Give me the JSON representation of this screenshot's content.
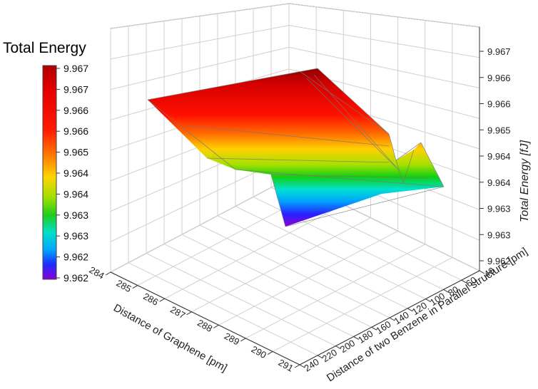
{
  "chart_data": {
    "type": "surface",
    "colorbar": {
      "title": "Total Energy",
      "tick_labels": [
        "9.967",
        "9.967",
        "9.966",
        "9.966",
        "9.965",
        "9.964",
        "9.964",
        "9.963",
        "9.963",
        "9.962",
        "9.962"
      ]
    },
    "x_axis": {
      "label": "Distance of Graphene [pm]",
      "ticks": [
        "284",
        "285",
        "286",
        "287",
        "288",
        "289",
        "290",
        "291"
      ]
    },
    "y_axis": {
      "label": "Distance of two Benzene in Parallel structure [pm]",
      "ticks": [
        "40",
        "60",
        "80",
        "100",
        "120",
        "140",
        "160",
        "180",
        "200",
        "220",
        "240"
      ]
    },
    "z_axis": {
      "label": "Total Energy [fJ]",
      "ticks": [
        "9.962",
        "9.963",
        "9.963",
        "9.964",
        "9.964",
        "9.965",
        "9.966",
        "9.966",
        "9.967"
      ]
    },
    "surface_points": [
      {
        "x": 285,
        "y": 240,
        "z": 9.9661
      },
      {
        "x": 289,
        "y": 240,
        "z": 9.9669
      },
      {
        "x": 290,
        "y": 200,
        "z": 9.9657
      },
      {
        "x": 291,
        "y": 170,
        "z": 9.9652
      },
      {
        "x": 291,
        "y": 150,
        "z": 9.964
      },
      {
        "x": 291,
        "y": 120,
        "z": 9.9632
      },
      {
        "x": 290,
        "y": 140,
        "z": 9.9632
      },
      {
        "x": 289,
        "y": 100,
        "z": 9.9625
      },
      {
        "x": 286,
        "y": 150,
        "z": 9.9633
      },
      {
        "x": 284,
        "y": 190,
        "z": 9.9652
      }
    ]
  }
}
